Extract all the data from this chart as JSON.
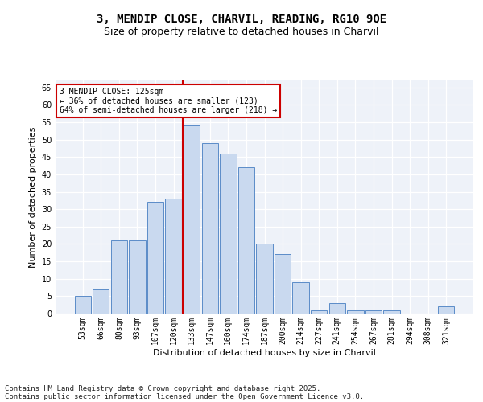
{
  "title": "3, MENDIP CLOSE, CHARVIL, READING, RG10 9QE",
  "subtitle": "Size of property relative to detached houses in Charvil",
  "xlabel": "Distribution of detached houses by size in Charvil",
  "ylabel": "Number of detached properties",
  "categories": [
    "53sqm",
    "66sqm",
    "80sqm",
    "93sqm",
    "107sqm",
    "120sqm",
    "133sqm",
    "147sqm",
    "160sqm",
    "174sqm",
    "187sqm",
    "200sqm",
    "214sqm",
    "227sqm",
    "241sqm",
    "254sqm",
    "267sqm",
    "281sqm",
    "294sqm",
    "308sqm",
    "321sqm"
  ],
  "values": [
    5,
    7,
    21,
    21,
    32,
    33,
    54,
    49,
    46,
    42,
    20,
    17,
    9,
    1,
    3,
    1,
    1,
    1,
    0,
    0,
    2
  ],
  "bar_color": "#c9d9ef",
  "bar_edge_color": "#5b8cc8",
  "vline_x_index": 5,
  "vline_color": "#cc0000",
  "annotation_text": "3 MENDIP CLOSE: 125sqm\n← 36% of detached houses are smaller (123)\n64% of semi-detached houses are larger (218) →",
  "annotation_box_color": "#ffffff",
  "annotation_box_edge_color": "#cc0000",
  "yticks": [
    0,
    5,
    10,
    15,
    20,
    25,
    30,
    35,
    40,
    45,
    50,
    55,
    60,
    65
  ],
  "ylim": [
    0,
    67
  ],
  "bg_color": "#eef2f9",
  "footer_line1": "Contains HM Land Registry data © Crown copyright and database right 2025.",
  "footer_line2": "Contains public sector information licensed under the Open Government Licence v3.0.",
  "title_fontsize": 10,
  "subtitle_fontsize": 9,
  "axis_label_fontsize": 8,
  "tick_fontsize": 7,
  "annotation_fontsize": 7,
  "footer_fontsize": 6.5
}
